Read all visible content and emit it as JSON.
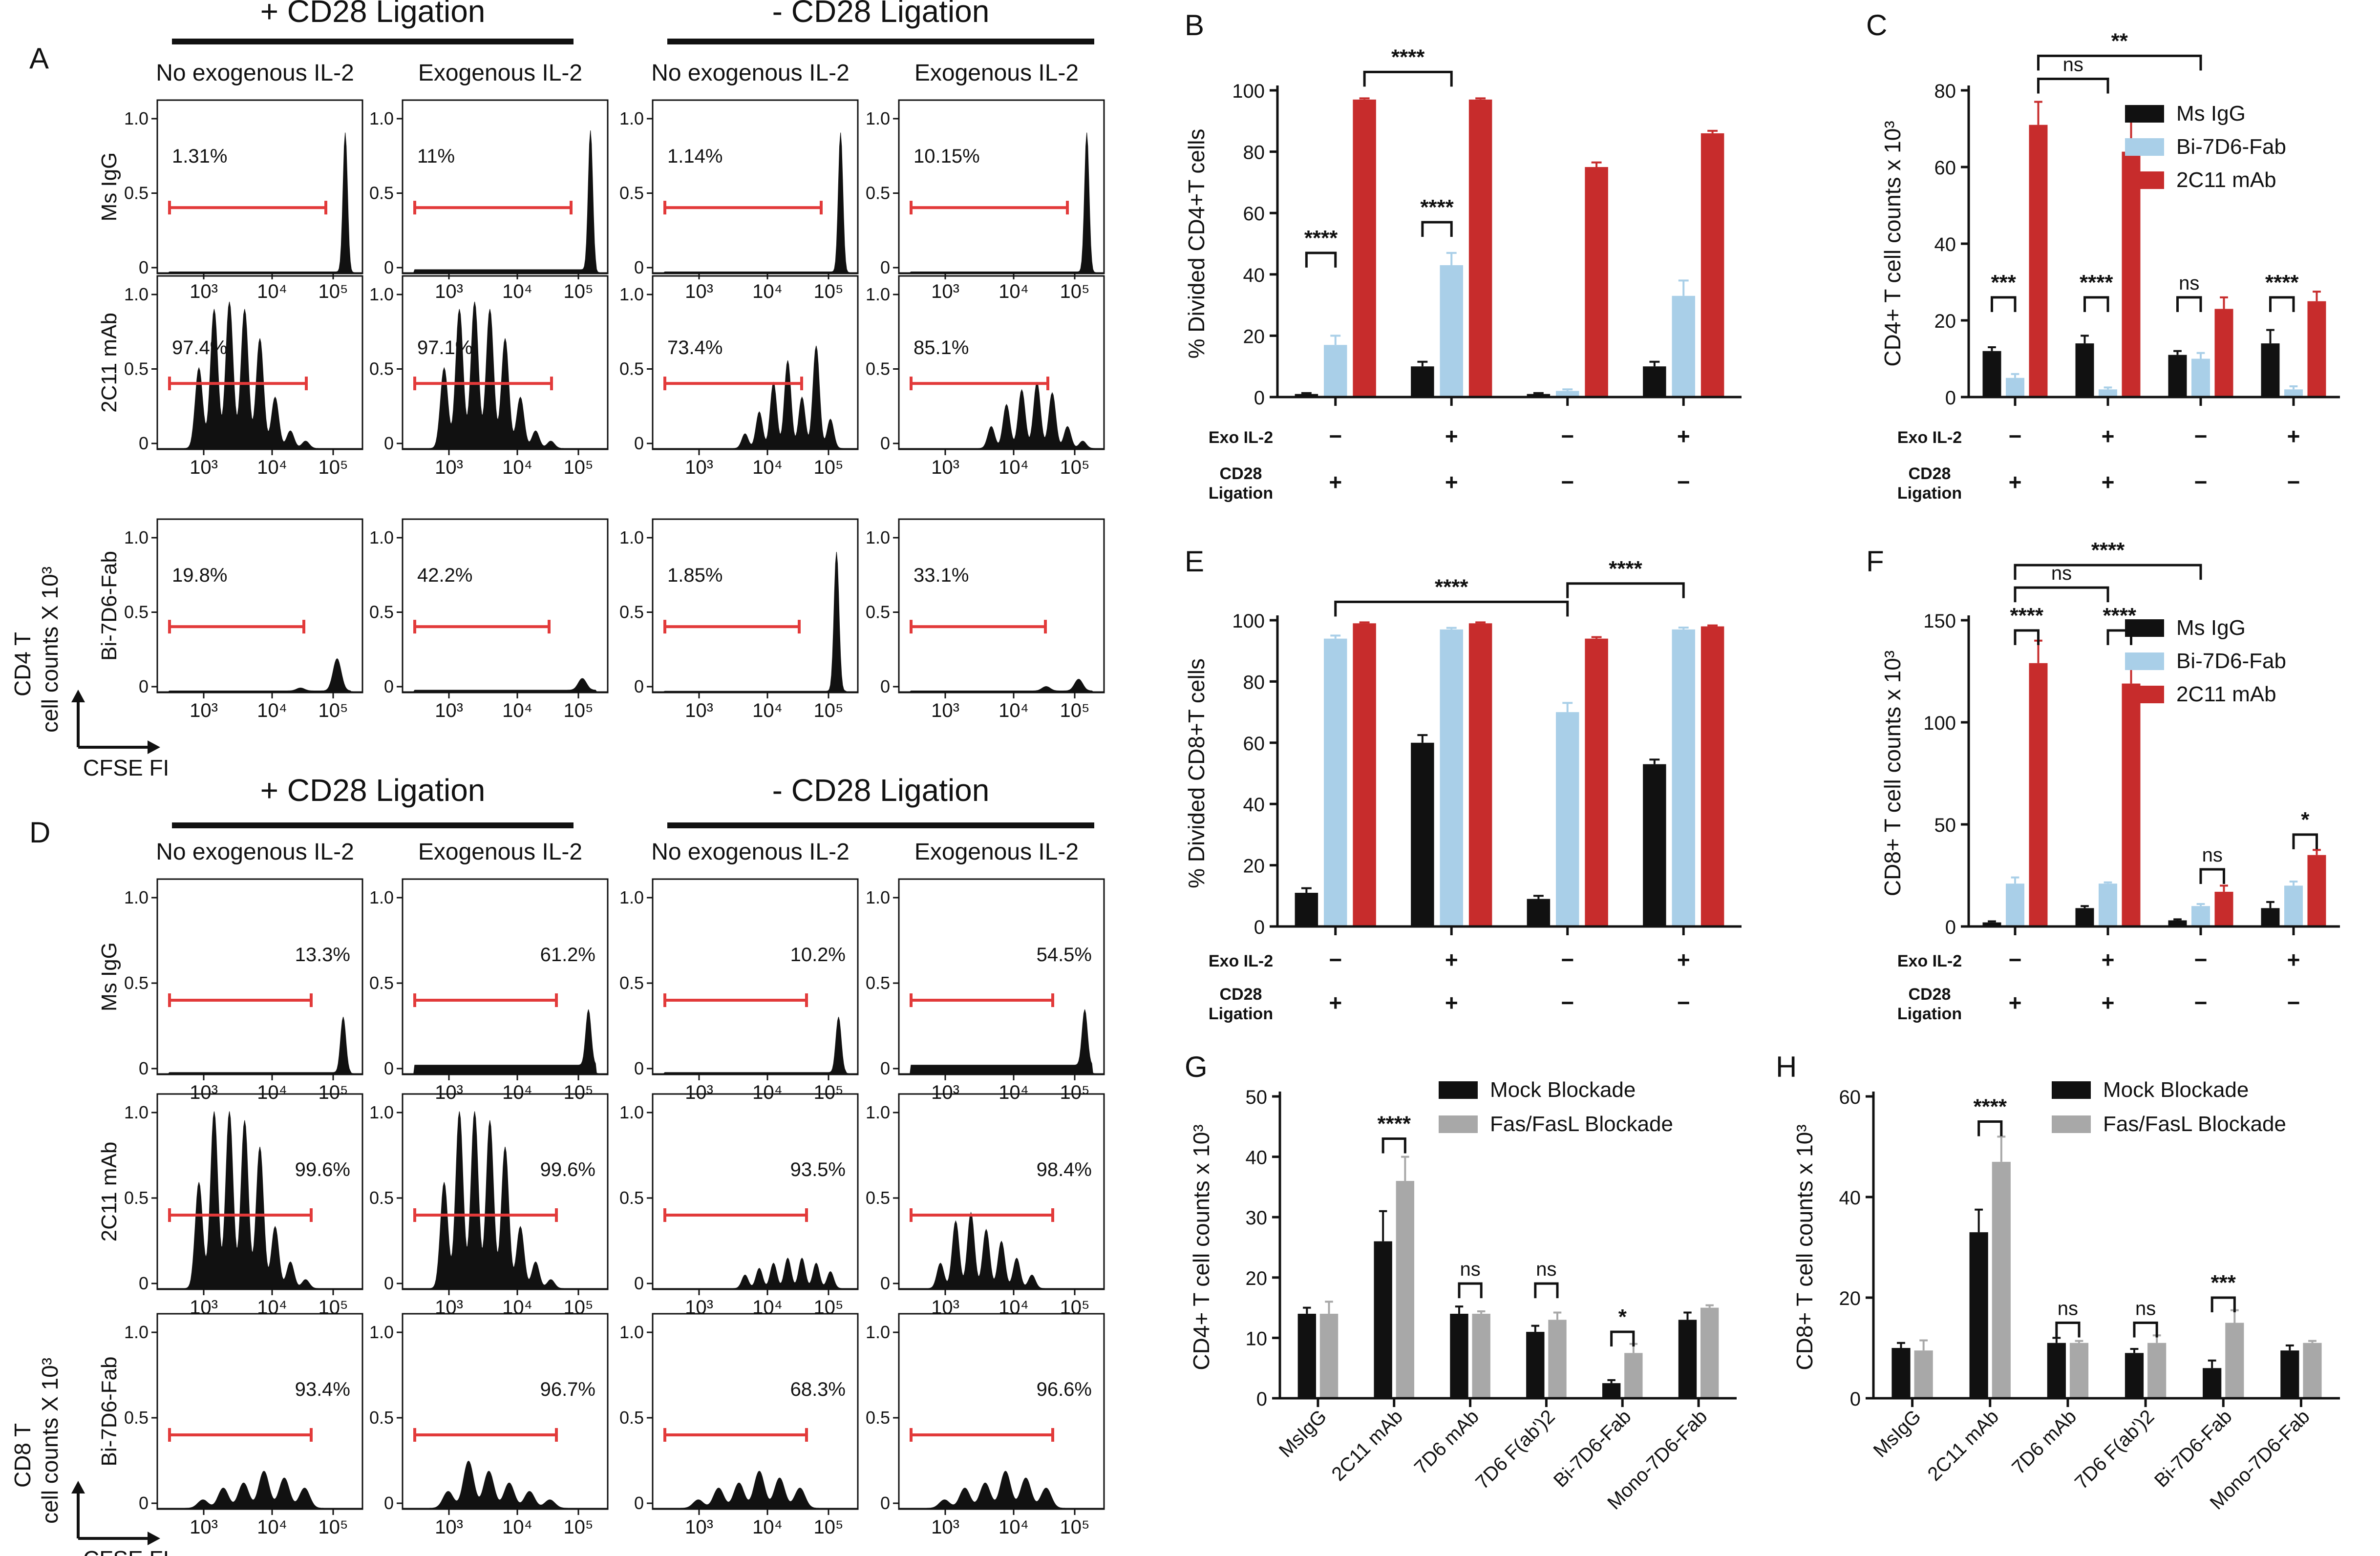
{
  "colors": {
    "black": "#111111",
    "blue": "#a9cfe8",
    "red": "#c72c2c",
    "gray": "#a8a8a8",
    "gate": "#e23a3a"
  },
  "flow_panels": [
    {
      "id": "A",
      "letter": "A",
      "groups": [
        "+ CD28 Ligation",
        "- CD28 Ligation"
      ],
      "columns": [
        "No exogenous IL-2",
        "Exogenous IL-2",
        "No exogenous IL-2",
        "Exogenous IL-2"
      ],
      "rows": [
        "Ms IgG",
        "2C11 mAb",
        "Bi-7D6-Fab"
      ],
      "percents": [
        [
          "1.31%",
          "11%",
          "1.14%",
          "10.15%"
        ],
        [
          "97.4%",
          "97.1%",
          "73.4%",
          "85.1%"
        ],
        [
          "19.8%",
          "42.2%",
          "1.85%",
          "33.1%"
        ]
      ],
      "y_ticks": [
        "0",
        "0.5",
        "1.0"
      ],
      "x_ticks": [
        "10³",
        "10⁴",
        "10⁵"
      ],
      "ylabel_line1": "CD4 T",
      "ylabel_line2": "cell counts X 10³",
      "xlabel": "CFSE FI"
    },
    {
      "id": "D",
      "letter": "D",
      "groups": [
        "+ CD28 Ligation",
        "- CD28 Ligation"
      ],
      "columns": [
        "No exogenous IL-2",
        "Exogenous IL-2",
        "No exogenous IL-2",
        "Exogenous IL-2"
      ],
      "rows": [
        "Ms IgG",
        "2C11 mAb",
        "Bi-7D6-Fab"
      ],
      "percents": [
        [
          "13.3%",
          "61.2%",
          "10.2%",
          "54.5%"
        ],
        [
          "99.6%",
          "99.6%",
          "93.5%",
          "98.4%"
        ],
        [
          "93.4%",
          "96.7%",
          "68.3%",
          "96.6%"
        ]
      ],
      "y_ticks": [
        "0",
        "0.5",
        "1.0"
      ],
      "x_ticks": [
        "10³",
        "10⁴",
        "10⁵"
      ],
      "ylabel_line1": "CD8 T",
      "ylabel_line2": "cell counts X 10³",
      "xlabel": "CFSE FI"
    }
  ],
  "chart_data": [
    {
      "id": "B",
      "letter": "B",
      "type": "bar",
      "ylabel": "% Divided CD4+T cells",
      "ylim": [
        0,
        100
      ],
      "yticks": [
        0,
        20,
        40,
        60,
        80,
        100
      ],
      "conditions": {
        "row1_label": "Exo IL-2",
        "row1": [
          "−",
          "+",
          "−",
          "+"
        ],
        "row2_label_1": "CD28",
        "row2_label_2": "Ligation",
        "row2": [
          "+",
          "+",
          "−",
          "−"
        ]
      },
      "series": [
        {
          "name": "Ms IgG",
          "color": "#111111",
          "values": [
            1,
            10,
            1,
            10
          ],
          "errors": [
            0.3,
            1.5,
            0.3,
            1.5
          ]
        },
        {
          "name": "Bi-7D6-Fab",
          "color": "#a9cfe8",
          "values": [
            17,
            43,
            2,
            33
          ],
          "errors": [
            3,
            4,
            0.5,
            5
          ]
        },
        {
          "name": "2C11 mAb",
          "color": "#c72c2c",
          "values": [
            97,
            97,
            75,
            86
          ],
          "errors": [
            0.4,
            0.4,
            1.5,
            0.8
          ]
        }
      ],
      "brackets": [
        {
          "g1": 0,
          "s1": 0,
          "g2": 0,
          "s2": 1,
          "y": 47,
          "label": "****"
        },
        {
          "g1": 1,
          "s1": 0,
          "g2": 1,
          "s2": 1,
          "y": 57,
          "label": "****"
        },
        {
          "g1": 0,
          "s1": 2,
          "g2": 1,
          "s2": 1,
          "y": 106,
          "label": "****"
        }
      ]
    },
    {
      "id": "C",
      "letter": "C",
      "type": "bar",
      "ylabel": "CD4+ T cell counts x 10³",
      "ylim": [
        0,
        80
      ],
      "yticks": [
        0,
        20,
        40,
        60,
        80
      ],
      "conditions": {
        "row1_label": "Exo IL-2",
        "row1": [
          "−",
          "+",
          "−",
          "+"
        ],
        "row2_label_1": "CD28",
        "row2_label_2": "Ligation",
        "row2": [
          "+",
          "+",
          "−",
          "−"
        ]
      },
      "legend": [
        "Ms IgG",
        "Bi-7D6-Fab",
        "2C11 mAb"
      ],
      "series": [
        {
          "name": "Ms IgG",
          "color": "#111111",
          "values": [
            12,
            14,
            11,
            14
          ],
          "errors": [
            1,
            2,
            1,
            3.5
          ]
        },
        {
          "name": "Bi-7D6-Fab",
          "color": "#a9cfe8",
          "values": [
            5,
            2,
            10,
            2
          ],
          "errors": [
            1,
            0.5,
            1.5,
            0.8
          ]
        },
        {
          "name": "2C11 mAb",
          "color": "#c72c2c",
          "values": [
            71,
            64,
            23,
            25
          ],
          "errors": [
            6,
            8,
            3,
            2.5
          ]
        }
      ],
      "brackets": [
        {
          "g1": 0,
          "s1": 0,
          "g2": 0,
          "s2": 1,
          "y": 26,
          "label": "***"
        },
        {
          "g1": 1,
          "s1": 0,
          "g2": 1,
          "s2": 1,
          "y": 26,
          "label": "****"
        },
        {
          "g1": 2,
          "s1": 0,
          "g2": 2,
          "s2": 1,
          "y": 26,
          "label": "ns"
        },
        {
          "g1": 3,
          "s1": 0,
          "g2": 3,
          "s2": 1,
          "y": 26,
          "label": "****"
        },
        {
          "g1": 0,
          "s1": 2,
          "g2": 1,
          "s2": 1,
          "y": 83,
          "label": "ns"
        },
        {
          "g1": 0,
          "s1": 2,
          "g2": 2,
          "s2": 1,
          "y": 89,
          "label": "**"
        }
      ]
    },
    {
      "id": "E",
      "letter": "E",
      "type": "bar",
      "ylabel": "% Divided CD8+T cells",
      "ylim": [
        0,
        100
      ],
      "yticks": [
        0,
        20,
        40,
        60,
        80,
        100
      ],
      "conditions": {
        "row1_label": "Exo IL-2",
        "row1": [
          "−",
          "+",
          "−",
          "+"
        ],
        "row2_label_1": "CD28",
        "row2_label_2": "Ligation",
        "row2": [
          "+",
          "+",
          "−",
          "−"
        ]
      },
      "series": [
        {
          "name": "Ms IgG",
          "color": "#111111",
          "values": [
            11,
            60,
            9,
            53
          ],
          "errors": [
            1.5,
            2.5,
            1,
            1.5
          ]
        },
        {
          "name": "Bi-7D6-Fab",
          "color": "#a9cfe8",
          "values": [
            94,
            97,
            70,
            97
          ],
          "errors": [
            1,
            0.5,
            3,
            0.6
          ]
        },
        {
          "name": "2C11 mAb",
          "color": "#c72c2c",
          "values": [
            99,
            99,
            94,
            98
          ],
          "errors": [
            0.3,
            0.3,
            0.5,
            0.3
          ]
        }
      ],
      "brackets": [
        {
          "g1": 0,
          "s1": 1,
          "g2": 2,
          "s2": 1,
          "y": 106,
          "label": "****"
        },
        {
          "g1": 2,
          "s1": 1,
          "g2": 3,
          "s2": 1,
          "y": 112,
          "label": "****"
        }
      ]
    },
    {
      "id": "F",
      "letter": "F",
      "type": "bar",
      "ylabel": "CD8+ T cell counts x 10³",
      "ylim": [
        0,
        150
      ],
      "yticks": [
        0,
        50,
        100,
        150
      ],
      "conditions": {
        "row1_label": "Exo IL-2",
        "row1": [
          "−",
          "+",
          "−",
          "+"
        ],
        "row2_label_1": "CD28",
        "row2_label_2": "Ligation",
        "row2": [
          "+",
          "+",
          "−",
          "−"
        ]
      },
      "legend": [
        "Ms IgG",
        "Bi-7D6-Fab",
        "2C11 mAb"
      ],
      "series": [
        {
          "name": "Ms IgG",
          "color": "#111111",
          "values": [
            2,
            9,
            3,
            9
          ],
          "errors": [
            0.5,
            1,
            0.5,
            3
          ]
        },
        {
          "name": "Bi-7D6-Fab",
          "color": "#a9cfe8",
          "values": [
            21,
            21,
            10,
            20
          ],
          "errors": [
            3,
            0.6,
            1,
            2
          ]
        },
        {
          "name": "2C11 mAb",
          "color": "#c72c2c",
          "values": [
            129,
            119,
            17,
            35
          ],
          "errors": [
            11,
            9,
            3,
            2.5
          ]
        }
      ],
      "brackets": [
        {
          "g1": 0,
          "s1": 1,
          "g2": 0,
          "s2": 2,
          "y": 145,
          "label": "****"
        },
        {
          "g1": 1,
          "s1": 1,
          "g2": 1,
          "s2": 2,
          "y": 145,
          "label": "****"
        },
        {
          "g1": 2,
          "s1": 1,
          "g2": 2,
          "s2": 2,
          "y": 28,
          "label": "ns"
        },
        {
          "g1": 3,
          "s1": 1,
          "g2": 3,
          "s2": 2,
          "y": 45,
          "label": "*"
        },
        {
          "g1": 0,
          "s1": 1,
          "g2": 1,
          "s2": 1,
          "y": 166,
          "label": "ns"
        },
        {
          "g1": 0,
          "s1": 1,
          "g2": 2,
          "s2": 1,
          "y": 177,
          "label": "****"
        }
      ]
    },
    {
      "id": "G",
      "letter": "G",
      "type": "bar",
      "ylabel": "CD4+ T cell counts x 10³",
      "ylim": [
        0,
        50
      ],
      "yticks": [
        0,
        10,
        20,
        30,
        40,
        50
      ],
      "categories": [
        "MsIgG",
        "2C11 mAb",
        "7D6 mAb",
        "7D6 F(ab')2",
        "Bi-7D6-Fab",
        "Mono-7D6-Fab"
      ],
      "legend": [
        "Mock Blockade",
        "Fas/FasL Blockade"
      ],
      "series": [
        {
          "name": "Mock Blockade",
          "color": "#111111",
          "values": [
            14,
            26,
            14,
            11,
            2.5,
            13
          ],
          "errors": [
            1,
            5,
            1.2,
            1,
            0.5,
            1.2
          ]
        },
        {
          "name": "Fas/FasL Blockade",
          "color": "#a8a8a8",
          "values": [
            14,
            36,
            14,
            13,
            7.5,
            15
          ],
          "errors": [
            2,
            4,
            0.4,
            1.2,
            1.5,
            0.4
          ]
        }
      ],
      "brackets": [
        {
          "g1": 1,
          "s1": 0,
          "g2": 1,
          "s2": 1,
          "y": 43,
          "label": "****"
        },
        {
          "g1": 2,
          "s1": 0,
          "g2": 2,
          "s2": 1,
          "y": 19,
          "label": "ns"
        },
        {
          "g1": 3,
          "s1": 0,
          "g2": 3,
          "s2": 1,
          "y": 19,
          "label": "ns"
        },
        {
          "g1": 4,
          "s1": 0,
          "g2": 4,
          "s2": 1,
          "y": 11,
          "label": "*"
        }
      ]
    },
    {
      "id": "H",
      "letter": "H",
      "type": "bar",
      "ylabel": "CD8+ T cell counts x 10³",
      "ylim": [
        0,
        60
      ],
      "yticks": [
        0,
        20,
        40,
        60
      ],
      "categories": [
        "MsIgG",
        "2C11 mAb",
        "7D6 mAb",
        "7D6 F(ab')2",
        "Bi-7D6-Fab",
        "Mono-7D6-Fab"
      ],
      "legend": [
        "Mock Blockade",
        "Fas/FasL Blockade"
      ],
      "series": [
        {
          "name": "Mock Blockade",
          "color": "#111111",
          "values": [
            10,
            33,
            11,
            9,
            6,
            9.5
          ],
          "errors": [
            1,
            4.5,
            1,
            0.8,
            1.5,
            1
          ]
        },
        {
          "name": "Fas/FasL Blockade",
          "color": "#a8a8a8",
          "values": [
            9.5,
            47,
            11,
            11,
            15,
            11
          ],
          "errors": [
            2,
            5,
            0.4,
            1.5,
            2.5,
            0.4
          ]
        }
      ],
      "brackets": [
        {
          "g1": 1,
          "s1": 0,
          "g2": 1,
          "s2": 1,
          "y": 55,
          "label": "****"
        },
        {
          "g1": 2,
          "s1": 0,
          "g2": 2,
          "s2": 1,
          "y": 15,
          "label": "ns"
        },
        {
          "g1": 3,
          "s1": 0,
          "g2": 3,
          "s2": 1,
          "y": 15,
          "label": "ns"
        },
        {
          "g1": 4,
          "s1": 0,
          "g2": 4,
          "s2": 1,
          "y": 20,
          "label": "***"
        }
      ]
    }
  ]
}
